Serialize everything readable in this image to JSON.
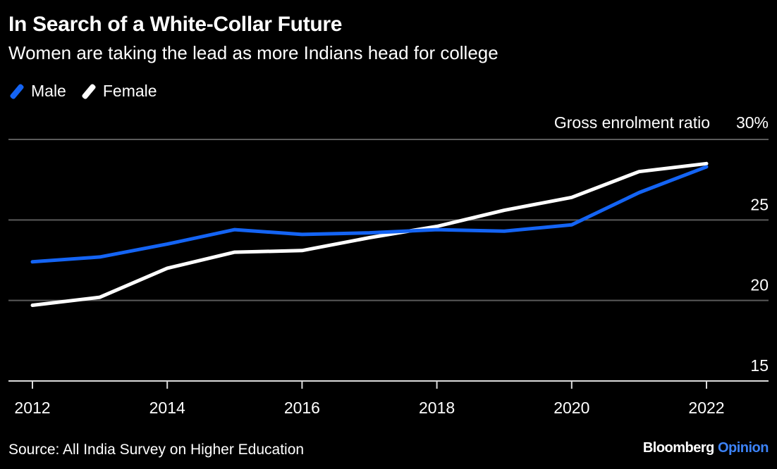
{
  "header": {
    "title": "In Search of a White-Collar Future",
    "subtitle": "Women are taking the lead as more Indians head for college"
  },
  "footer": {
    "source": "Source: All India Survey on Higher Education",
    "brand_main": "Bloomberg",
    "brand_accent": "Opinion"
  },
  "chart_data": {
    "type": "line",
    "title": "In Search of a White-Collar Future",
    "subtitle": "Women are taking the lead as more Indians head for college",
    "ylabel": "Gross enrolment ratio",
    "ylim": [
      15,
      30
    ],
    "xlim": [
      2012,
      2022
    ],
    "yticks": [
      {
        "value": 30,
        "label": "30%"
      },
      {
        "value": 25,
        "label": "25"
      },
      {
        "value": 20,
        "label": "20"
      },
      {
        "value": 15,
        "label": "15"
      }
    ],
    "xticks": [
      {
        "value": 2012,
        "label": "2012"
      },
      {
        "value": 2014,
        "label": "2014"
      },
      {
        "value": 2016,
        "label": "2016"
      },
      {
        "value": 2018,
        "label": "2018"
      },
      {
        "value": 2020,
        "label": "2020"
      },
      {
        "value": 2022,
        "label": "2022"
      }
    ],
    "x": [
      2012,
      2013,
      2014,
      2015,
      2016,
      2017,
      2018,
      2019,
      2020,
      2021,
      2022
    ],
    "series": [
      {
        "name": "Male",
        "color": "#1464f4",
        "values": [
          22.4,
          22.7,
          23.5,
          24.4,
          24.1,
          24.2,
          24.4,
          24.3,
          24.7,
          26.7,
          28.3
        ]
      },
      {
        "name": "Female",
        "color": "#ffffff",
        "values": [
          19.7,
          20.2,
          22.0,
          23.0,
          23.1,
          23.9,
          24.6,
          25.6,
          26.4,
          28.0,
          28.5
        ]
      }
    ],
    "grid": true,
    "legend": "top-left",
    "y_axis_side": "right"
  }
}
